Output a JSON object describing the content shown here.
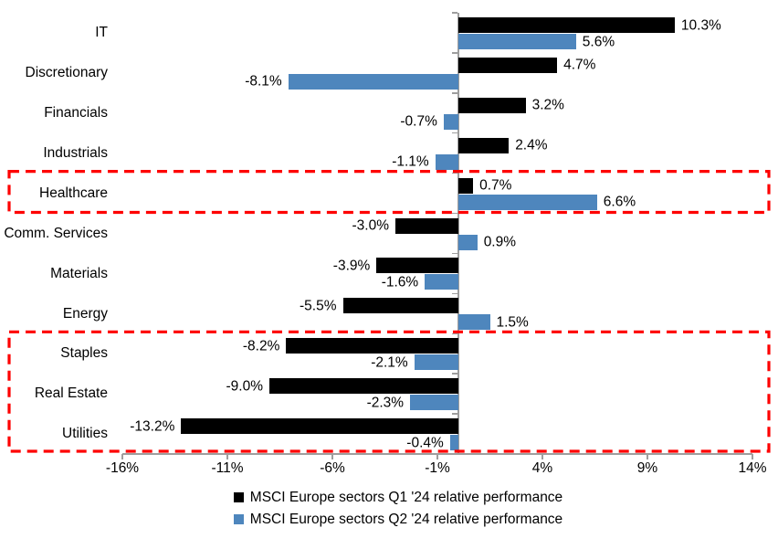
{
  "chart_data": {
    "type": "bar",
    "orientation": "horizontal",
    "categories": [
      "IT",
      "Discretionary",
      "Financials",
      "Industrials",
      "Healthcare",
      "Comm. Services",
      "Materials",
      "Energy",
      "Staples",
      "Real Estate",
      "Utilities"
    ],
    "series": [
      {
        "name": "MSCI Europe sectors Q1 '24 relative performance",
        "color": "#000000",
        "values": [
          10.3,
          4.7,
          3.2,
          2.4,
          0.7,
          -3.0,
          -3.9,
          -5.5,
          -8.2,
          -9.0,
          -13.2
        ],
        "labels": [
          "10.3%",
          "4.7%",
          "3.2%",
          "2.4%",
          "0.7%",
          "-3.0%",
          "-3.9%",
          "-5.5%",
          "-8.2%",
          "-9.0%",
          "-13.2%"
        ]
      },
      {
        "name": "MSCI Europe sectors Q2 '24 relative performance",
        "color": "#4E86BD",
        "values": [
          5.6,
          -8.1,
          -0.7,
          -1.1,
          6.6,
          0.9,
          -1.6,
          1.5,
          -2.1,
          -2.3,
          -0.4
        ],
        "labels": [
          "5.6%",
          "-8.1%",
          "-0.7%",
          "-1.1%",
          "6.6%",
          "0.9%",
          "-1.6%",
          "1.5%",
          "-2.1%",
          "-2.3%",
          "-0.4%"
        ]
      }
    ],
    "x_axis": {
      "range": [
        -16,
        14
      ],
      "ticks": [
        -16,
        -11,
        -6,
        -1,
        4,
        9,
        14
      ],
      "tick_labels": [
        "-16%",
        "-11%",
        "-6%",
        "-1%",
        "4%",
        "9%",
        "14%"
      ]
    },
    "grid": false,
    "legend_position": "bottom",
    "highlights": [
      {
        "rows": [
          "Healthcare"
        ],
        "color": "#FE0000",
        "style": "dashed-box"
      },
      {
        "rows": [
          "Staples",
          "Real Estate",
          "Utilities"
        ],
        "color": "#FE0000",
        "style": "dashed-box"
      }
    ],
    "axis_color": "#9e9e9e"
  }
}
